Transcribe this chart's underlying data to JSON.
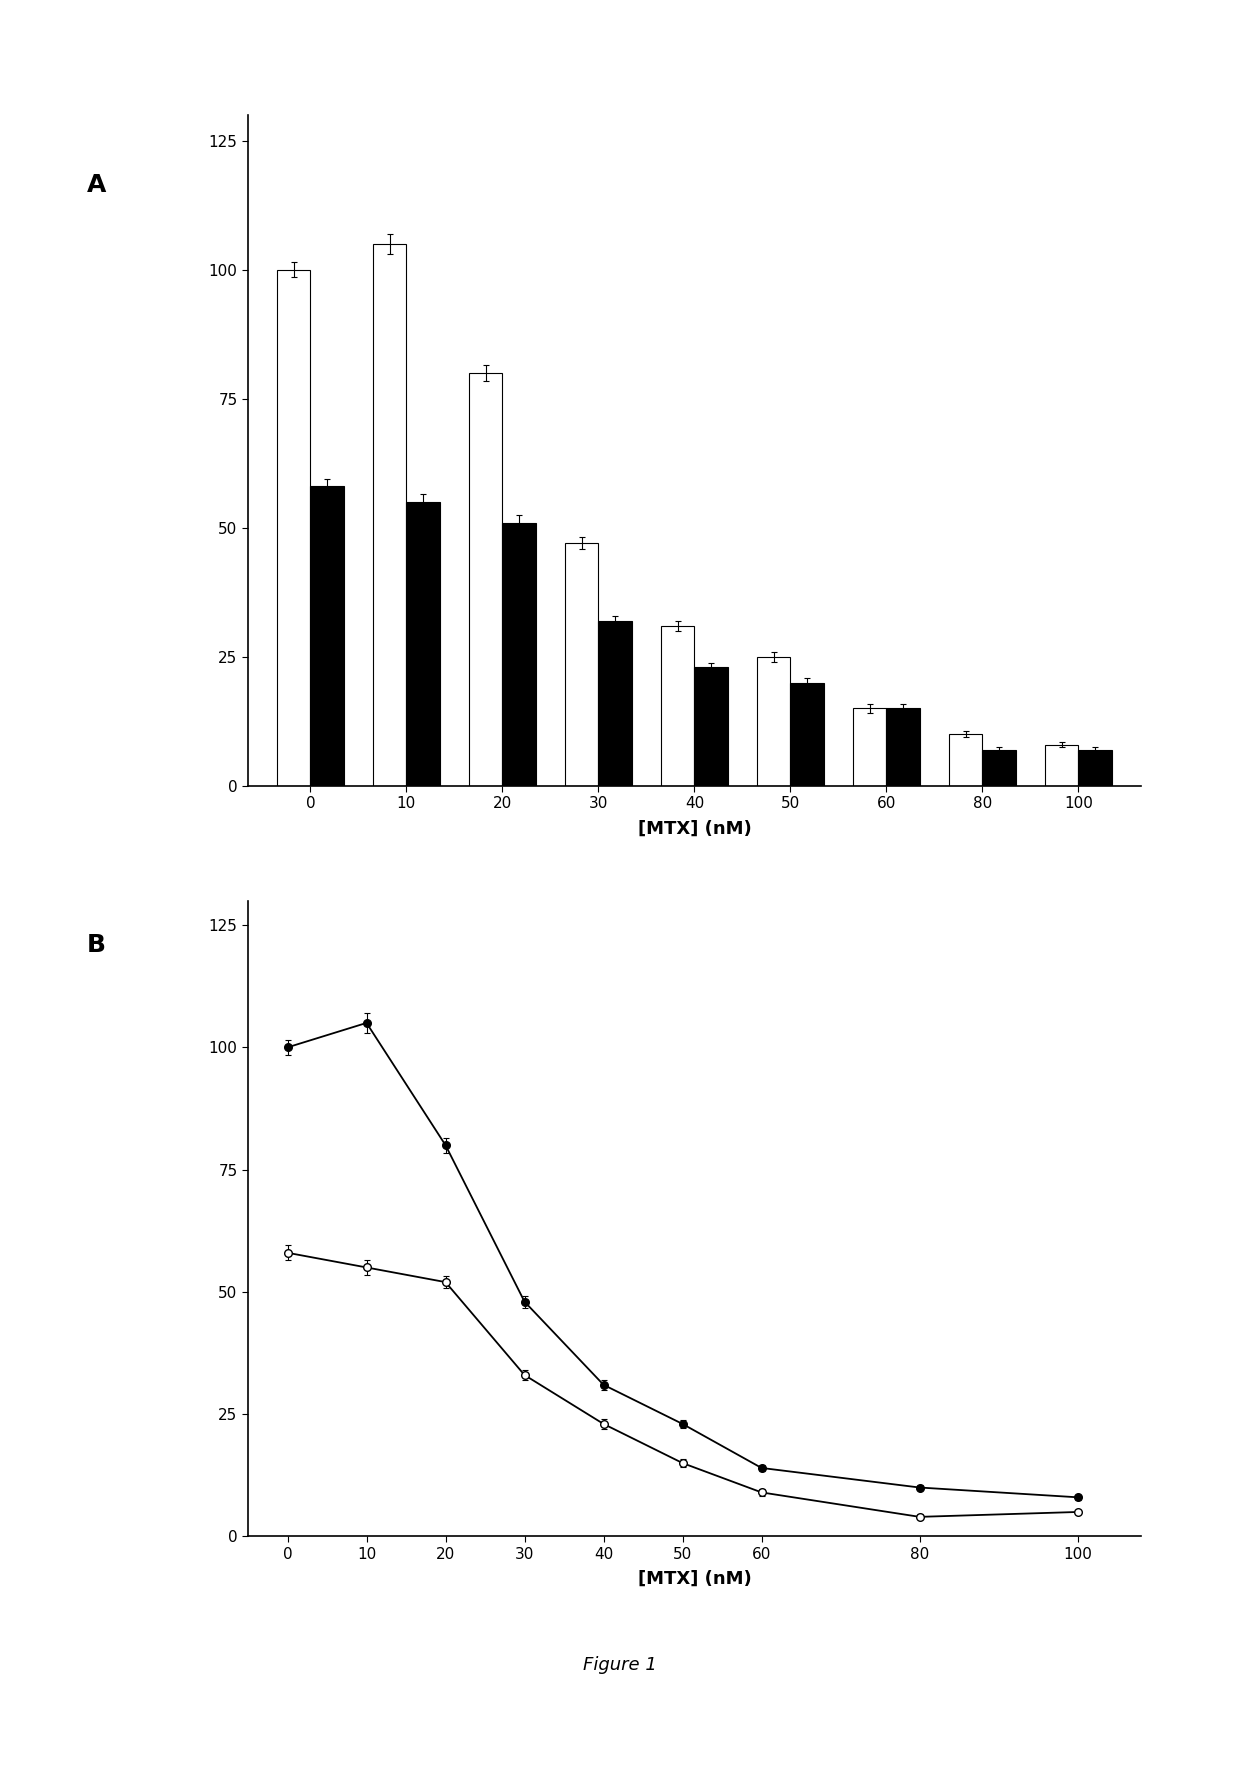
{
  "x_labels": [
    0,
    10,
    20,
    30,
    40,
    50,
    60,
    80,
    100
  ],
  "bar_white": [
    100,
    105,
    80,
    47,
    31,
    25,
    15,
    10,
    8
  ],
  "bar_black": [
    58,
    55,
    51,
    32,
    23,
    20,
    15,
    7,
    7
  ],
  "bar_white_err": [
    1.5,
    2.0,
    1.5,
    1.2,
    1.0,
    1.0,
    0.8,
    0.6,
    0.5
  ],
  "bar_black_err": [
    1.5,
    1.5,
    1.5,
    1.0,
    0.8,
    0.8,
    0.8,
    0.5,
    0.5
  ],
  "line_filled": [
    100,
    105,
    80,
    48,
    31,
    23,
    14,
    10,
    8
  ],
  "line_open": [
    58,
    55,
    52,
    33,
    23,
    15,
    9,
    4,
    5
  ],
  "line_filled_err": [
    1.5,
    2.0,
    1.5,
    1.2,
    1.0,
    0.8,
    0.7,
    0.5,
    0.5
  ],
  "line_open_err": [
    1.5,
    1.5,
    1.2,
    1.0,
    1.0,
    0.8,
    0.7,
    0.5,
    0.5
  ],
  "xlabel": "[MTX] (nM)",
  "ylim": [
    0,
    130
  ],
  "yticks": [
    0,
    25,
    50,
    75,
    100,
    125
  ],
  "background_color": "#ffffff",
  "bar_width": 0.35,
  "label_A": "A",
  "label_B": "B",
  "figure_label": "Figure 1"
}
